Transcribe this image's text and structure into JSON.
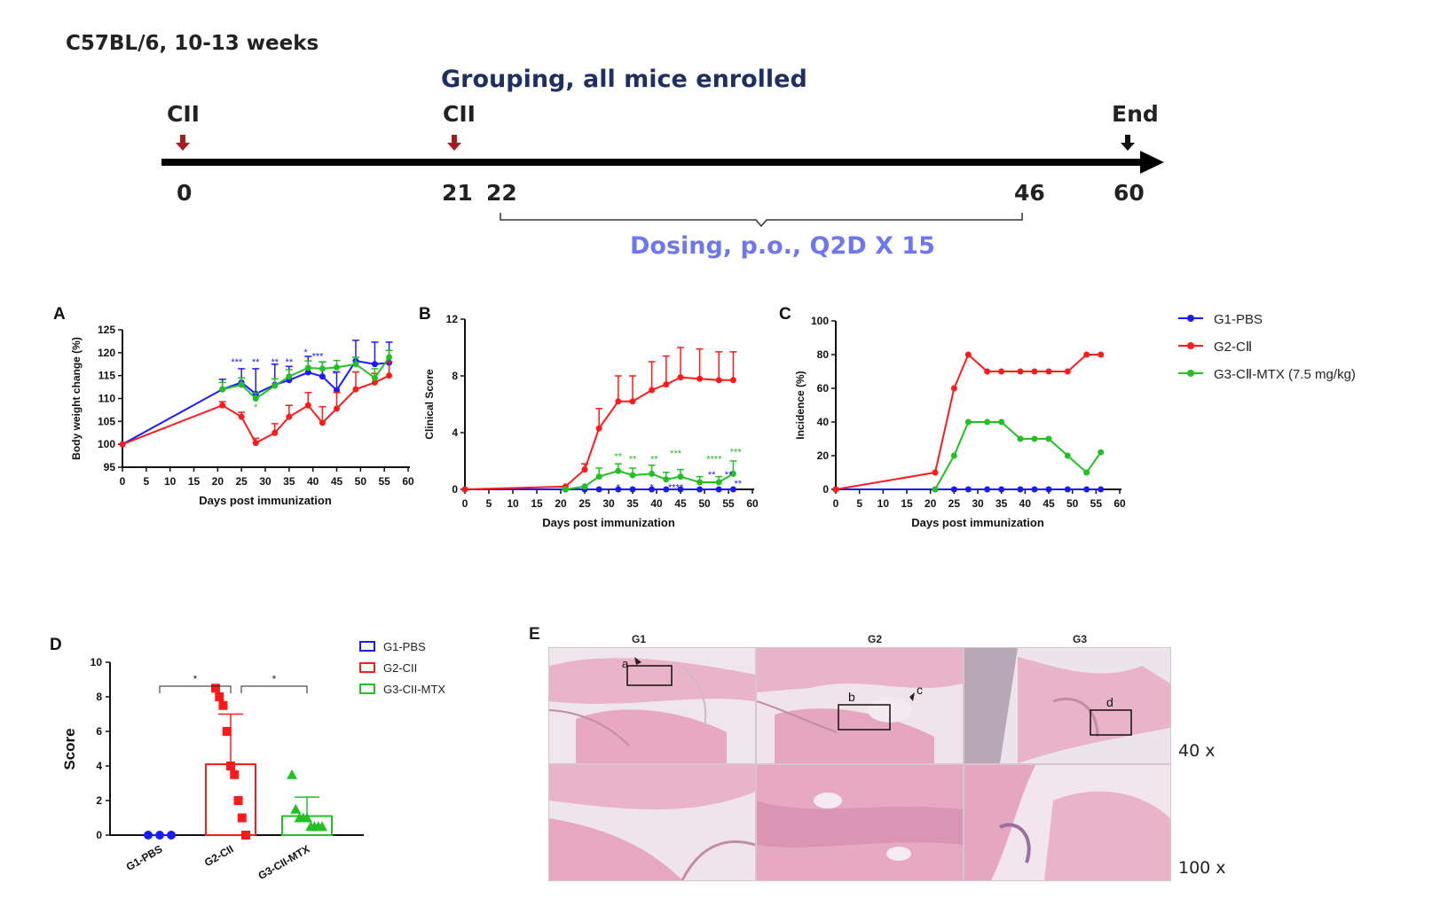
{
  "header": {
    "strain": "C57BL/6, 10-13 weeks",
    "grouping": "Grouping, all mice enrolled",
    "dosing": "Dosing, p.o., Q2D X 15"
  },
  "timeline": {
    "events": [
      {
        "label": "CII",
        "day": "0",
        "color": "#a51d22"
      },
      {
        "label": "CII",
        "day": "21",
        "color": "#a51d22"
      },
      {
        "label": "End",
        "day": "60",
        "color": "#111111"
      }
    ],
    "dosing_start": "22",
    "dosing_end": "46"
  },
  "legend_top": [
    {
      "name": "G1-PBS",
      "color": "#1a1aff"
    },
    {
      "name": "G2-CⅡ",
      "color": "#ff1a1a"
    },
    {
      "name": "G3-CⅡ-MTX (7.5 mg/kg)",
      "color": "#22c022"
    }
  ],
  "legend_d": [
    {
      "name": "G1-PBS",
      "color": "#1a1aff"
    },
    {
      "name": "G2-CII",
      "color": "#ff1a1a"
    },
    {
      "name": "G3-CII-MTX",
      "color": "#22c022"
    }
  ],
  "panel_e": {
    "letter": "E",
    "columns": [
      "G1",
      "G2",
      "G3"
    ],
    "magnifications": [
      "40 x",
      "100 x"
    ],
    "markers": [
      "a",
      "b",
      "c",
      "d"
    ]
  },
  "colors": {
    "g1": "#1a1aff",
    "g2": "#ff1a1a",
    "g3": "#22c022",
    "tissue": "#e9b3c8"
  },
  "chart_data": [
    {
      "panel": "A",
      "type": "line",
      "xlabel": "Days post immunization",
      "ylabel": "Body weight change (%)",
      "xlim": [
        0,
        60
      ],
      "ylim": [
        95,
        125
      ],
      "xticks": [
        0,
        5,
        10,
        15,
        20,
        25,
        30,
        35,
        40,
        45,
        50,
        55,
        60
      ],
      "yticks": [
        95,
        100,
        105,
        110,
        115,
        120,
        125
      ],
      "series": [
        {
          "name": "G1-PBS",
          "color": "#1a1aff",
          "x": [
            0,
            21,
            25,
            28,
            32,
            35,
            39,
            42,
            45,
            49,
            53,
            56
          ],
          "y": [
            100,
            112,
            113.5,
            111,
            113,
            114,
            115.7,
            114.8,
            111.8,
            118.2,
            117.5,
            117.8
          ],
          "err": [
            0,
            2.2,
            3,
            5.5,
            4.5,
            3,
            3.5,
            3.2,
            4,
            4.5,
            4.8,
            4.5
          ]
        },
        {
          "name": "G2-CⅡ",
          "color": "#ff1a1a",
          "x": [
            0,
            21,
            25,
            28,
            32,
            35,
            39,
            42,
            45,
            49,
            53,
            56
          ],
          "y": [
            100,
            108.5,
            106,
            100.3,
            102.5,
            106,
            108.5,
            104.7,
            107.8,
            112,
            113.5,
            115
          ],
          "err": [
            0,
            0.8,
            1,
            1,
            2,
            2.5,
            2.8,
            3.5,
            3.5,
            3.8,
            2,
            3
          ]
        },
        {
          "name": "G3-CⅡ-MTX (7.5 mg/kg)",
          "color": "#22c022",
          "x": [
            21,
            25,
            28,
            32,
            35,
            39,
            42,
            45,
            49,
            53,
            56
          ],
          "y": [
            112,
            113,
            110,
            112.8,
            114.8,
            116.7,
            116.5,
            116.8,
            117.5,
            114.5,
            119
          ],
          "err": [
            1.5,
            1.5,
            1.2,
            1.5,
            1.5,
            1.5,
            1.5,
            1.5,
            1.5,
            2,
            1.5
          ]
        }
      ],
      "annotations": [
        {
          "x": 24,
          "y": 117.3,
          "text": "***",
          "color": "#1a1aff"
        },
        {
          "x": 28,
          "y": 117.3,
          "text": "**",
          "color": "#1a1aff"
        },
        {
          "x": 32,
          "y": 117.3,
          "text": "**",
          "color": "#1a1aff"
        },
        {
          "x": 35,
          "y": 117.3,
          "text": "**",
          "color": "#1a1aff"
        },
        {
          "x": 38.5,
          "y": 119.4,
          "text": "*",
          "color": "#1a1aff"
        },
        {
          "x": 41,
          "y": 118.5,
          "text": "***",
          "color": "#1a1aff"
        },
        {
          "x": 44.5,
          "y": 114.6,
          "text": "*",
          "color": "#1a1aff"
        },
        {
          "x": 28,
          "y": 107.4,
          "text": "*",
          "color": "#22c022"
        }
      ]
    },
    {
      "panel": "B",
      "type": "line",
      "xlabel": "Days post immunization",
      "ylabel": "Clinical Score",
      "xlim": [
        0,
        60
      ],
      "ylim": [
        0,
        12
      ],
      "xticks": [
        0,
        5,
        10,
        15,
        20,
        25,
        30,
        35,
        40,
        45,
        50,
        55,
        60
      ],
      "yticks": [
        0,
        4,
        8,
        12
      ],
      "series": [
        {
          "name": "G1-PBS",
          "color": "#1a1aff",
          "x": [
            0,
            21,
            25,
            28,
            32,
            35,
            39,
            42,
            45,
            49,
            53,
            56
          ],
          "y": [
            0,
            0,
            0,
            0,
            0,
            0,
            0,
            0,
            0,
            0,
            0,
            0
          ],
          "err": [
            0,
            0,
            0,
            0,
            0,
            0,
            0,
            0,
            0,
            0,
            0,
            0
          ]
        },
        {
          "name": "G2-CⅡ",
          "color": "#ff1a1a",
          "x": [
            0,
            21,
            25,
            28,
            32,
            35,
            39,
            42,
            45,
            49,
            53,
            56
          ],
          "y": [
            0,
            0.2,
            1.4,
            4.3,
            6.2,
            6.2,
            7,
            7.4,
            7.9,
            7.8,
            7.7,
            7.7
          ],
          "err": [
            0,
            0,
            0.4,
            1.4,
            1.8,
            1.8,
            2,
            2,
            2.1,
            2.1,
            2,
            2
          ]
        },
        {
          "name": "G3-CⅡ-MTX (7.5 mg/kg)",
          "color": "#22c022",
          "x": [
            21,
            25,
            28,
            32,
            35,
            39,
            42,
            45,
            49,
            53,
            56
          ],
          "y": [
            0,
            0.2,
            0.9,
            1.3,
            1,
            1.1,
            0.7,
            0.9,
            0.5,
            0.5,
            1.1
          ],
          "err": [
            0,
            0,
            0.6,
            0.5,
            0.5,
            0.6,
            0.5,
            0.5,
            0.4,
            0.4,
            0.9
          ]
        }
      ],
      "annotations": [
        {
          "x": 32,
          "y": 2.1,
          "text": "**",
          "color": "#22c022"
        },
        {
          "x": 35,
          "y": 1.9,
          "text": "**",
          "color": "#22c022"
        },
        {
          "x": 39.5,
          "y": 1.9,
          "text": "**",
          "color": "#22c022"
        },
        {
          "x": 44,
          "y": 2.3,
          "text": "***",
          "color": "#22c022"
        },
        {
          "x": 52,
          "y": 1.9,
          "text": "****",
          "color": "#22c022"
        },
        {
          "x": 56.5,
          "y": 2.4,
          "text": "***",
          "color": "#22c022"
        },
        {
          "x": 32,
          "y": -0.1,
          "text": "*",
          "color": "#1a1aff"
        },
        {
          "x": 39,
          "y": -0.1,
          "text": "*",
          "color": "#1a1aff"
        },
        {
          "x": 44,
          "y": -0.1,
          "text": "****",
          "color": "#1a1aff"
        },
        {
          "x": 51.5,
          "y": 0.8,
          "text": "**",
          "color": "#1a1aff"
        },
        {
          "x": 55,
          "y": 0.8,
          "text": "**",
          "color": "#1a1aff"
        },
        {
          "x": 57,
          "y": 0.2,
          "text": "**",
          "color": "#1a1aff"
        }
      ]
    },
    {
      "panel": "C",
      "type": "line",
      "xlabel": "Days post immunization",
      "ylabel": "Incidence (%)",
      "xlim": [
        0,
        60
      ],
      "ylim": [
        0,
        100
      ],
      "xticks": [
        0,
        5,
        10,
        15,
        20,
        25,
        30,
        35,
        40,
        45,
        50,
        55,
        60
      ],
      "yticks": [
        0,
        20,
        40,
        60,
        80,
        100
      ],
      "series": [
        {
          "name": "G1-PBS",
          "color": "#1a1aff",
          "x": [
            0,
            21,
            25,
            28,
            32,
            35,
            39,
            42,
            45,
            49,
            53,
            56
          ],
          "y": [
            0,
            0,
            0,
            0,
            0,
            0,
            0,
            0,
            0,
            0,
            0,
            0
          ]
        },
        {
          "name": "G2-CⅡ",
          "color": "#ff1a1a",
          "x": [
            0,
            21,
            25,
            28,
            32,
            35,
            39,
            42,
            45,
            49,
            53,
            56
          ],
          "y": [
            0,
            10,
            60,
            80,
            70,
            70,
            70,
            70,
            70,
            70,
            80,
            80
          ]
        },
        {
          "name": "G3-CⅡ-MTX (7.5 mg/kg)",
          "color": "#22c022",
          "x": [
            21,
            25,
            28,
            32,
            35,
            39,
            42,
            45,
            49,
            53,
            56
          ],
          "y": [
            0,
            20,
            40,
            40,
            40,
            30,
            30,
            30,
            20,
            10,
            22
          ]
        }
      ]
    },
    {
      "panel": "D",
      "type": "bar",
      "ylabel": "Score",
      "ylim": [
        0,
        10
      ],
      "yticks": [
        0,
        2,
        4,
        6,
        8,
        10
      ],
      "categories": [
        "G1-PBS",
        "G2-CII",
        "G3-CII-MTX"
      ],
      "values": [
        0,
        4.1,
        1.1
      ],
      "err": [
        0,
        2.9,
        1.1
      ],
      "points": [
        [
          0,
          0,
          0
        ],
        [
          8.5,
          8,
          7.5,
          6,
          4,
          3.5,
          2,
          1,
          0
        ],
        [
          3.5,
          1.5,
          1,
          1,
          1,
          0.5,
          0.5,
          0.5,
          0.5
        ]
      ],
      "significance": [
        {
          "from": "G1-PBS",
          "to": "G2-CII",
          "text": "*"
        },
        {
          "from": "G2-CII",
          "to": "G3-CII-MTX",
          "text": "*"
        }
      ]
    }
  ]
}
